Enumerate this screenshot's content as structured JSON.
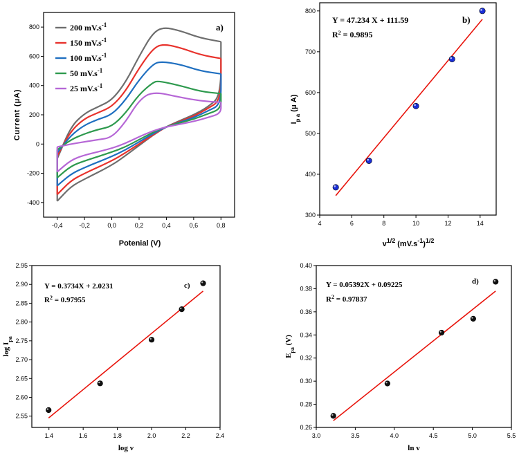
{
  "chart_data": [
    {
      "id": "a",
      "type": "line",
      "panel_label": "a)",
      "xlabel": "Potenial (V)",
      "ylabel": "Current (μA)",
      "xlim": [
        -0.5,
        0.9
      ],
      "ylim": [
        -500,
        900
      ],
      "xticks": [
        -0.4,
        -0.2,
        0.0,
        0.2,
        0.4,
        0.6,
        0.8
      ],
      "xtick_labels": [
        "-0,4",
        "-0,2",
        "0,0",
        "0,2",
        "0,4",
        "0,6",
        "0,8"
      ],
      "yticks": [
        -400,
        -200,
        0,
        200,
        400,
        600,
        800
      ],
      "ytick_labels": [
        "-400",
        "-200",
        "0",
        "200",
        "400",
        "600",
        "800"
      ],
      "legend_position": "top-left",
      "series": [
        {
          "name": "200 mV.s",
          "name_sup": "-1",
          "color": "#6e6e6e",
          "forward": [
            [
              -0.4,
              -100
            ],
            [
              -0.3,
              120
            ],
            [
              -0.2,
              210
            ],
            [
              -0.1,
              255
            ],
            [
              0.0,
              300
            ],
            [
              0.1,
              420
            ],
            [
              0.2,
              600
            ],
            [
              0.3,
              760
            ],
            [
              0.38,
              800
            ],
            [
              0.5,
              775
            ],
            [
              0.65,
              725
            ],
            [
              0.8,
              700
            ]
          ],
          "reverse": [
            [
              0.8,
              700
            ],
            [
              0.8,
              330
            ],
            [
              0.7,
              250
            ],
            [
              0.6,
              200
            ],
            [
              0.5,
              160
            ],
            [
              0.4,
              120
            ],
            [
              0.3,
              60
            ],
            [
              0.2,
              -10
            ],
            [
              0.1,
              -80
            ],
            [
              0.0,
              -145
            ],
            [
              -0.2,
              -240
            ],
            [
              -0.3,
              -290
            ],
            [
              -0.4,
              -390
            ]
          ]
        },
        {
          "name": "150 mV.s",
          "name_sup": "-1",
          "color": "#e8322c",
          "forward": [
            [
              -0.4,
              -80
            ],
            [
              -0.3,
              90
            ],
            [
              -0.2,
              175
            ],
            [
              -0.1,
              215
            ],
            [
              0.0,
              255
            ],
            [
              0.1,
              360
            ],
            [
              0.2,
              520
            ],
            [
              0.3,
              650
            ],
            [
              0.37,
              685
            ],
            [
              0.5,
              660
            ],
            [
              0.65,
              610
            ],
            [
              0.8,
              585
            ]
          ],
          "reverse": [
            [
              0.8,
              585
            ],
            [
              0.8,
              300
            ],
            [
              0.7,
              240
            ],
            [
              0.6,
              190
            ],
            [
              0.5,
              155
            ],
            [
              0.4,
              118
            ],
            [
              0.3,
              62
            ],
            [
              0.2,
              0
            ],
            [
              0.1,
              -60
            ],
            [
              0.0,
              -115
            ],
            [
              -0.2,
              -200
            ],
            [
              -0.3,
              -250
            ],
            [
              -0.4,
              -345
            ]
          ]
        },
        {
          "name": "100 mV.s",
          "name_sup": "-1",
          "color": "#1f6fc0",
          "forward": [
            [
              -0.4,
              -60
            ],
            [
              -0.3,
              60
            ],
            [
              -0.2,
              130
            ],
            [
              -0.1,
              170
            ],
            [
              0.0,
              200
            ],
            [
              0.1,
              300
            ],
            [
              0.2,
              440
            ],
            [
              0.3,
              545
            ],
            [
              0.36,
              565
            ],
            [
              0.5,
              545
            ],
            [
              0.65,
              500
            ],
            [
              0.8,
              480
            ]
          ],
          "reverse": [
            [
              0.8,
              480
            ],
            [
              0.8,
              270
            ],
            [
              0.7,
              225
            ],
            [
              0.6,
              180
            ],
            [
              0.5,
              150
            ],
            [
              0.4,
              118
            ],
            [
              0.3,
              70
            ],
            [
              0.2,
              15
            ],
            [
              0.1,
              -40
            ],
            [
              0.0,
              -85
            ],
            [
              -0.2,
              -160
            ],
            [
              -0.3,
              -205
            ],
            [
              -0.4,
              -285
            ]
          ]
        },
        {
          "name": "50 mV.s",
          "name_sup": "-1",
          "color": "#2e9a4e",
          "forward": [
            [
              -0.4,
              -40
            ],
            [
              -0.3,
              30
            ],
            [
              -0.2,
              70
            ],
            [
              -0.1,
              100
            ],
            [
              0.0,
              120
            ],
            [
              0.1,
              210
            ],
            [
              0.2,
              340
            ],
            [
              0.3,
              420
            ],
            [
              0.34,
              432
            ],
            [
              0.5,
              400
            ],
            [
              0.65,
              360
            ],
            [
              0.8,
              345
            ]
          ],
          "reverse": [
            [
              0.8,
              345
            ],
            [
              0.8,
              240
            ],
            [
              0.7,
              205
            ],
            [
              0.6,
              170
            ],
            [
              0.5,
              145
            ],
            [
              0.4,
              120
            ],
            [
              0.3,
              80
            ],
            [
              0.2,
              30
            ],
            [
              0.1,
              -20
            ],
            [
              0.0,
              -55
            ],
            [
              -0.2,
              -115
            ],
            [
              -0.3,
              -150
            ],
            [
              -0.4,
              -230
            ]
          ]
        },
        {
          "name": "25 mV.s",
          "name_sup": "-1",
          "color": "#b667d6",
          "forward": [
            [
              -0.4,
              -20
            ],
            [
              -0.3,
              0
            ],
            [
              -0.2,
              15
            ],
            [
              -0.1,
              30
            ],
            [
              0.0,
              45
            ],
            [
              0.1,
              150
            ],
            [
              0.2,
              300
            ],
            [
              0.3,
              360
            ],
            [
              0.5,
              320
            ],
            [
              0.65,
              295
            ],
            [
              0.8,
              285
            ]
          ],
          "reverse": [
            [
              0.8,
              285
            ],
            [
              0.8,
              210
            ],
            [
              0.7,
              180
            ],
            [
              0.6,
              155
            ],
            [
              0.5,
              135
            ],
            [
              0.4,
              118
            ],
            [
              0.3,
              90
            ],
            [
              0.2,
              50
            ],
            [
              0.1,
              5
            ],
            [
              0.0,
              -30
            ],
            [
              -0.2,
              -75
            ],
            [
              -0.3,
              -110
            ],
            [
              -0.4,
              -190
            ]
          ]
        }
      ]
    },
    {
      "id": "b",
      "type": "scatter",
      "panel_label": "b)",
      "equation": "Y = 47.234 X + 111.59",
      "r2_prefix": "R",
      "r2_sup": "2",
      "r2_value": " = 0.9895",
      "xlabel_main": "v",
      "xlabel_sup1": "1/2",
      "xlabel_mid": " (mV.s",
      "xlabel_sup2": "-1",
      "xlabel_end": ")",
      "xlabel_sup3": "1/2",
      "ylabel_main": "I",
      "ylabel_sub": "p a",
      "ylabel_end": " (μ A)",
      "xlim": [
        4,
        15
      ],
      "ylim": [
        300,
        820
      ],
      "xticks": [
        4,
        6,
        8,
        10,
        12,
        14
      ],
      "yticks": [
        300,
        400,
        500,
        600,
        700,
        800
      ],
      "x": [
        5.0,
        7.07,
        10.0,
        12.25,
        14.14
      ],
      "y": [
        368,
        433,
        567,
        682,
        800
      ],
      "fit": {
        "slope": 47.234,
        "intercept": 111.59,
        "x_range": [
          5.0,
          14.14
        ]
      },
      "marker_color": "#1a2fd8",
      "fit_color": "#e8140c"
    },
    {
      "id": "c",
      "type": "scatter",
      "panel_label": "c)",
      "equation": "Y = 0.3734X + 2.0231",
      "r2_prefix": "R",
      "r2_sup": "2",
      "r2_value": " = 0.97955",
      "xlabel": "log v",
      "ylabel_main": "log I",
      "ylabel_sub": "pa",
      "xlim": [
        1.3,
        2.4
      ],
      "ylim": [
        2.52,
        2.95
      ],
      "xticks": [
        1.4,
        1.6,
        1.8,
        2.0,
        2.2,
        2.4
      ],
      "xtick_labels": [
        "1.4",
        "1.6",
        "1.8",
        "2.0",
        "2.2",
        "2.4"
      ],
      "yticks": [
        2.55,
        2.6,
        2.65,
        2.7,
        2.75,
        2.8,
        2.85,
        2.9,
        2.95
      ],
      "ytick_labels": [
        "2.55",
        "2.60",
        "2.65",
        "2.70",
        "2.75",
        "2.80",
        "2.85",
        "2.90",
        "2.95"
      ],
      "x": [
        1.398,
        1.699,
        2.0,
        2.176,
        2.301
      ],
      "y": [
        2.566,
        2.637,
        2.753,
        2.834,
        2.903
      ],
      "fit": {
        "slope": 0.3734,
        "intercept": 2.0231,
        "x_range": [
          1.398,
          2.301
        ]
      },
      "marker_color": "#111111",
      "fit_color": "#e8140c"
    },
    {
      "id": "d",
      "type": "scatter",
      "panel_label": "d)",
      "equation": "Y = 0.05392X + 0.09225",
      "r2_prefix": "R",
      "r2_sup": "2",
      "r2_value": " = 0.97837",
      "xlabel": "ln v",
      "ylabel_main": "E",
      "ylabel_sub": "pa",
      "ylabel_end": " (V)",
      "xlim": [
        3.0,
        5.5
      ],
      "ylim": [
        0.26,
        0.4
      ],
      "xticks": [
        3.0,
        3.5,
        4.0,
        4.5,
        5.0,
        5.5
      ],
      "xtick_labels": [
        "3.0",
        "3.5",
        "4.0",
        "4.5",
        "5.0",
        "5.5"
      ],
      "yticks": [
        0.26,
        0.28,
        0.3,
        0.32,
        0.34,
        0.36,
        0.38,
        0.4
      ],
      "ytick_labels": [
        "0.26",
        "0.28",
        "0.30",
        "0.32",
        "0.34",
        "0.36",
        "0.38",
        "0.40"
      ],
      "x": [
        3.219,
        3.912,
        4.605,
        5.011,
        5.298
      ],
      "y": [
        0.27,
        0.298,
        0.342,
        0.354,
        0.386
      ],
      "fit": {
        "slope": 0.05392,
        "intercept": 0.09225,
        "x_range": [
          3.219,
          5.298
        ]
      },
      "marker_color": "#111111",
      "fit_color": "#e8140c"
    }
  ]
}
